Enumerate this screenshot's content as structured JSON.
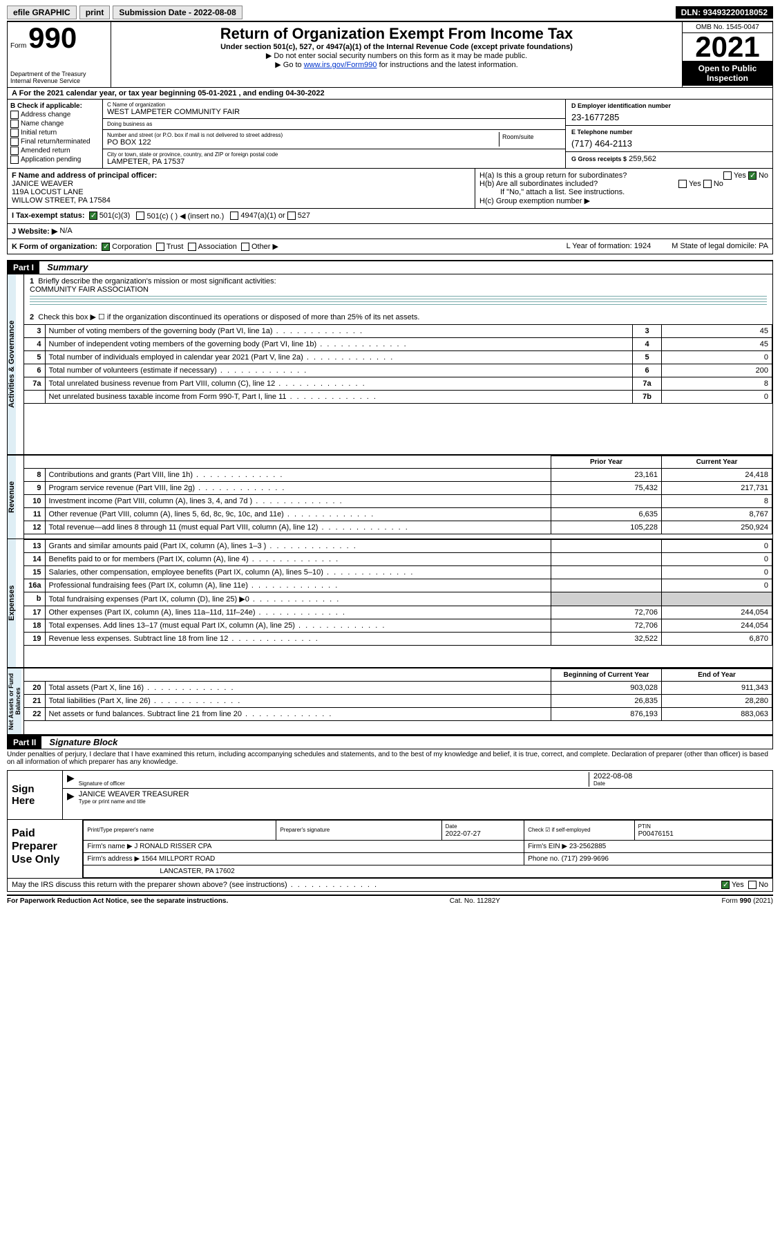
{
  "topbar": {
    "efile": "efile GRAPHIC",
    "print": "print",
    "subdate_label": "Submission Date - 2022-08-08",
    "dln": "DLN: 93493220018052"
  },
  "header": {
    "form_word": "Form",
    "form_no": "990",
    "dept": "Department of the Treasury\nInternal Revenue Service",
    "title": "Return of Organization Exempt From Income Tax",
    "subtitle": "Under section 501(c), 527, or 4947(a)(1) of the Internal Revenue Code (except private foundations)",
    "note1": "▶ Do not enter social security numbers on this form as it may be made public.",
    "note2_pre": "▶ Go to ",
    "note2_link": "www.irs.gov/Form990",
    "note2_post": " for instructions and the latest information.",
    "omb": "OMB No. 1545-0047",
    "year": "2021",
    "open": "Open to Public Inspection"
  },
  "A": {
    "text": "A For the 2021 calendar year, or tax year beginning 05-01-2021   , and ending 04-30-2022"
  },
  "B": {
    "label": "B Check if applicable:",
    "opts": [
      "Address change",
      "Name change",
      "Initial return",
      "Final return/terminated",
      "Amended return",
      "Application pending"
    ]
  },
  "C": {
    "name_lbl": "C Name of organization",
    "name": "WEST LAMPETER COMMUNITY FAIR",
    "dba_lbl": "Doing business as",
    "dba": "",
    "addr_lbl": "Number and street (or P.O. box if mail is not delivered to street address)",
    "suite_lbl": "Room/suite",
    "addr": "PO BOX 122",
    "city_lbl": "City or town, state or province, country, and ZIP or foreign postal code",
    "city": "LAMPETER, PA  17537"
  },
  "D": {
    "lbl": "D Employer identification number",
    "val": "23-1677285"
  },
  "E": {
    "lbl": "E Telephone number",
    "val": "(717) 464-2113"
  },
  "G": {
    "lbl": "G Gross receipts $",
    "val": "259,562"
  },
  "F": {
    "lbl": "F  Name and address of principal officer:",
    "name": "JANICE WEAVER",
    "addr1": "119A LOCUST LANE",
    "addr2": "WILLOW STREET, PA  17584"
  },
  "H": {
    "a": "H(a)  Is this a group return for subordinates?",
    "a_yes": "Yes",
    "a_no": "No",
    "b": "H(b)  Are all subordinates included?",
    "b_note": "If \"No,\" attach a list. See instructions.",
    "c": "H(c)  Group exemption number ▶"
  },
  "I": {
    "lbl": "I    Tax-exempt status:",
    "o1": "501(c)(3)",
    "o2": "501(c) (  ) ◀ (insert no.)",
    "o3": "4947(a)(1) or",
    "o4": "527"
  },
  "J": {
    "lbl": "J   Website: ▶",
    "val": "N/A"
  },
  "K": {
    "lbl": "K Form of organization:",
    "o1": "Corporation",
    "o2": "Trust",
    "o3": "Association",
    "o4": "Other ▶",
    "L": "L Year of formation: 1924",
    "M": "M State of legal domicile: PA"
  },
  "part1": {
    "hdr": "Part I",
    "title": "Summary",
    "q1": "Briefly describe the organization's mission or most significant activities:",
    "q1val": "COMMUNITY FAIR ASSOCIATION",
    "q2": "Check this box ▶ ☐  if the organization discontinued its operations or disposed of more than 25% of its net assets.",
    "sections": {
      "gov": "Activities & Governance",
      "rev": "Revenue",
      "exp": "Expenses",
      "net": "Net Assets or Fund Balances"
    },
    "rows_gov": [
      {
        "n": "3",
        "t": "Number of voting members of the governing body (Part VI, line 1a)",
        "box": "3",
        "v": "45"
      },
      {
        "n": "4",
        "t": "Number of independent voting members of the governing body (Part VI, line 1b)",
        "box": "4",
        "v": "45"
      },
      {
        "n": "5",
        "t": "Total number of individuals employed in calendar year 2021 (Part V, line 2a)",
        "box": "5",
        "v": "0"
      },
      {
        "n": "6",
        "t": "Total number of volunteers (estimate if necessary)",
        "box": "6",
        "v": "200"
      },
      {
        "n": "7a",
        "t": "Total unrelated business revenue from Part VIII, column (C), line 12",
        "box": "7a",
        "v": "8"
      },
      {
        "n": "",
        "t": "Net unrelated business taxable income from Form 990-T, Part I, line 11",
        "box": "7b",
        "v": "0"
      }
    ],
    "col_prior": "Prior Year",
    "col_curr": "Current Year",
    "rows_rev": [
      {
        "n": "8",
        "t": "Contributions and grants (Part VIII, line 1h)",
        "p": "23,161",
        "c": "24,418"
      },
      {
        "n": "9",
        "t": "Program service revenue (Part VIII, line 2g)",
        "p": "75,432",
        "c": "217,731"
      },
      {
        "n": "10",
        "t": "Investment income (Part VIII, column (A), lines 3, 4, and 7d )",
        "p": "",
        "c": "8"
      },
      {
        "n": "11",
        "t": "Other revenue (Part VIII, column (A), lines 5, 6d, 8c, 9c, 10c, and 11e)",
        "p": "6,635",
        "c": "8,767"
      },
      {
        "n": "12",
        "t": "Total revenue—add lines 8 through 11 (must equal Part VIII, column (A), line 12)",
        "p": "105,228",
        "c": "250,924"
      }
    ],
    "rows_exp": [
      {
        "n": "13",
        "t": "Grants and similar amounts paid (Part IX, column (A), lines 1–3 )",
        "p": "",
        "c": "0"
      },
      {
        "n": "14",
        "t": "Benefits paid to or for members (Part IX, column (A), line 4)",
        "p": "",
        "c": "0"
      },
      {
        "n": "15",
        "t": "Salaries, other compensation, employee benefits (Part IX, column (A), lines 5–10)",
        "p": "",
        "c": "0"
      },
      {
        "n": "16a",
        "t": "Professional fundraising fees (Part IX, column (A), line 11e)",
        "p": "",
        "c": "0"
      },
      {
        "n": "b",
        "t": "Total fundraising expenses (Part IX, column (D), line 25) ▶0",
        "p": "shade",
        "c": "shade"
      },
      {
        "n": "17",
        "t": "Other expenses (Part IX, column (A), lines 11a–11d, 11f–24e)",
        "p": "72,706",
        "c": "244,054"
      },
      {
        "n": "18",
        "t": "Total expenses. Add lines 13–17 (must equal Part IX, column (A), line 25)",
        "p": "72,706",
        "c": "244,054"
      },
      {
        "n": "19",
        "t": "Revenue less expenses. Subtract line 18 from line 12",
        "p": "32,522",
        "c": "6,870"
      }
    ],
    "col_beg": "Beginning of Current Year",
    "col_end": "End of Year",
    "rows_net": [
      {
        "n": "20",
        "t": "Total assets (Part X, line 16)",
        "p": "903,028",
        "c": "911,343"
      },
      {
        "n": "21",
        "t": "Total liabilities (Part X, line 26)",
        "p": "26,835",
        "c": "28,280"
      },
      {
        "n": "22",
        "t": "Net assets or fund balances. Subtract line 21 from line 20",
        "p": "876,193",
        "c": "883,063"
      }
    ]
  },
  "part2": {
    "hdr": "Part II",
    "title": "Signature Block",
    "decl": "Under penalties of perjury, I declare that I have examined this return, including accompanying schedules and statements, and to the best of my knowledge and belief, it is true, correct, and complete. Declaration of preparer (other than officer) is based on all information of which preparer has any knowledge."
  },
  "sign": {
    "lab": "Sign Here",
    "sig_lbl": "Signature of officer",
    "date": "2022-08-08",
    "date_lbl": "Date",
    "name": "JANICE WEAVER TREASURER",
    "name_lbl": "Type or print name and title"
  },
  "paid": {
    "lab": "Paid Preparer Use Only",
    "h1": "Print/Type preparer's name",
    "h2": "Preparer's signature",
    "h3": "Date",
    "h3v": "2022-07-27",
    "h4": "Check ☑ if self-employed",
    "h5": "PTIN",
    "h5v": "P00476151",
    "firm_lbl": "Firm's name    ▶",
    "firm": "J RONALD RISSER CPA",
    "ein_lbl": "Firm's EIN ▶",
    "ein": "23-2562885",
    "addr_lbl": "Firm's address ▶",
    "addr1": "1564 MILLPORT ROAD",
    "addr2": "LANCASTER, PA  17602",
    "phone_lbl": "Phone no.",
    "phone": "(717) 299-9696"
  },
  "mayirs": {
    "q": "May the IRS discuss this return with the preparer shown above? (see instructions)",
    "yes": "Yes",
    "no": "No"
  },
  "footer": {
    "l": "For Paperwork Reduction Act Notice, see the separate instructions.",
    "c": "Cat. No. 11282Y",
    "r": "Form 990 (2021)"
  }
}
